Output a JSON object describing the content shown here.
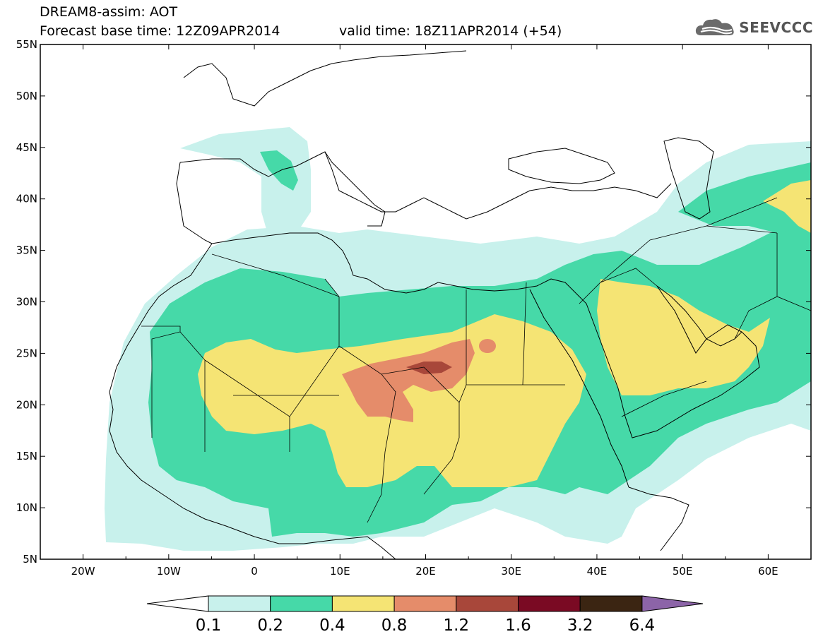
{
  "header": {
    "title": "DREAM8-assim: AOT",
    "base_time": "Forecast base time: 12Z09APR2014",
    "valid_time": "valid time: 18Z11APR2014 (+54)"
  },
  "logo": {
    "text": "SEEVCCC",
    "icon": "cloud-logo-icon"
  },
  "map": {
    "lat_range": [
      5,
      55
    ],
    "lon_range": [
      -25,
      65
    ],
    "lat_ticks": [
      "5N",
      "10N",
      "15N",
      "20N",
      "25N",
      "30N",
      "35N",
      "40N",
      "45N",
      "50N",
      "55N"
    ],
    "lon_ticks": [
      "20W",
      "10W",
      "0",
      "10E",
      "20E",
      "30E",
      "40E",
      "50E",
      "60E"
    ]
  },
  "colorbar": {
    "levels": [
      "0.1",
      "0.2",
      "0.4",
      "0.8",
      "1.2",
      "1.6",
      "3.2",
      "6.4"
    ],
    "colors": [
      "#c8f1ec",
      "#46d9a8",
      "#f5e474",
      "#e58c6a",
      "#a8473a",
      "#7a0a23",
      "#3b2512",
      "#8c64a8"
    ],
    "under_color": "#ffffff",
    "over_color": "#8c64a8"
  }
}
